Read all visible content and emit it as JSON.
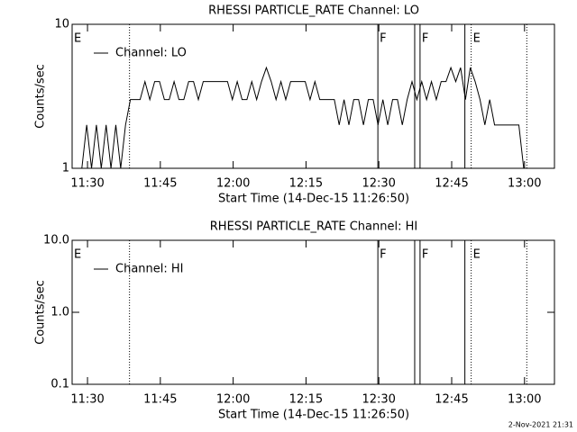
{
  "chart_data": [
    {
      "type": "line",
      "title": "RHESSI PARTICLE_RATE Channel: LO",
      "xlabel": "Start Time (14-Dec-15 11:26:50)",
      "ylabel": "Counts/sec",
      "ylog": true,
      "ylim": [
        1,
        10
      ],
      "yticks": [
        1,
        10
      ],
      "xlim": [
        0,
        5960
      ],
      "xticks": [
        {
          "value": 190,
          "label": "11:30"
        },
        {
          "value": 1090,
          "label": "11:45"
        },
        {
          "value": 1990,
          "label": "12:00"
        },
        {
          "value": 2890,
          "label": "12:15"
        },
        {
          "value": 3790,
          "label": "12:30"
        },
        {
          "value": 4690,
          "label": "12:45"
        },
        {
          "value": 5590,
          "label": "13:00"
        }
      ],
      "legend": "upper left",
      "series": [
        {
          "name": "Channel: LO",
          "color": "#000000",
          "x": [
            120,
            180,
            240,
            300,
            360,
            420,
            480,
            540,
            600,
            660,
            720,
            780,
            840,
            900,
            960,
            1020,
            1080,
            1140,
            1200,
            1260,
            1320,
            1380,
            1440,
            1500,
            1560,
            1620,
            1680,
            1740,
            1800,
            1860,
            1920,
            1980,
            2040,
            2100,
            2160,
            2220,
            2280,
            2340,
            2400,
            2460,
            2520,
            2580,
            2640,
            2700,
            2760,
            2820,
            2880,
            2940,
            3000,
            3060,
            3120,
            3180,
            3240,
            3300,
            3360,
            3420,
            3480,
            3540,
            3600,
            3660,
            3720,
            3780,
            3840,
            3900,
            3960,
            4020,
            4080,
            4140,
            4200,
            4260,
            4320,
            4380,
            4440,
            4500,
            4560,
            4620,
            4680,
            4740,
            4800,
            4860,
            4920,
            4980,
            5040,
            5100,
            5160,
            5220,
            5280,
            5340,
            5400,
            5460,
            5520,
            5580
          ],
          "values": [
            1,
            2,
            1,
            2,
            1,
            2,
            1,
            2,
            1,
            2,
            3,
            3,
            3,
            4,
            3,
            4,
            4,
            3,
            3,
            4,
            3,
            3,
            4,
            4,
            3,
            4,
            4,
            4,
            4,
            4,
            4,
            3,
            4,
            3,
            3,
            4,
            3,
            4,
            5,
            4,
            3,
            4,
            3,
            4,
            4,
            4,
            4,
            3,
            4,
            3,
            3,
            3,
            3,
            2,
            3,
            2,
            3,
            3,
            2,
            3,
            3,
            2,
            3,
            2,
            3,
            3,
            2,
            3,
            4,
            3,
            4,
            3,
            4,
            3,
            4,
            4,
            5,
            4,
            5,
            3,
            5,
            4,
            3,
            2,
            3,
            2,
            2,
            2,
            2,
            2,
            2,
            1
          ]
        }
      ],
      "vlines": [
        {
          "x": 709,
          "style": "dotted"
        },
        {
          "x": 3778,
          "style": "solid"
        },
        {
          "x": 4233,
          "style": "solid"
        },
        {
          "x": 4299,
          "style": "solid"
        },
        {
          "x": 4853,
          "style": "solid"
        },
        {
          "x": 4931,
          "style": "dotted"
        },
        {
          "x": 5618,
          "style": "dotted"
        }
      ],
      "annotations": [
        {
          "text": "E",
          "x": 0
        },
        {
          "text": "F",
          "x": 3778
        },
        {
          "text": "F",
          "x": 4299
        },
        {
          "text": "E",
          "x": 4931
        }
      ]
    },
    {
      "type": "line",
      "title": "RHESSI PARTICLE_RATE Channel: HI",
      "xlabel": "Start Time (14-Dec-15 11:26:50)",
      "ylabel": "Counts/sec",
      "ylog": true,
      "ylim": [
        0.1,
        10
      ],
      "yticks": [
        0.1,
        {
          "value": 1,
          "label": "1.0"
        },
        {
          "value": 10,
          "label": "10.0"
        }
      ],
      "xlim": [
        0,
        5960
      ],
      "xticks": [
        {
          "value": 190,
          "label": "11:30"
        },
        {
          "value": 1090,
          "label": "11:45"
        },
        {
          "value": 1990,
          "label": "12:00"
        },
        {
          "value": 2890,
          "label": "12:15"
        },
        {
          "value": 3790,
          "label": "12:30"
        },
        {
          "value": 4690,
          "label": "12:45"
        },
        {
          "value": 5590,
          "label": "13:00"
        }
      ],
      "legend": "upper left",
      "series": [
        {
          "name": "Channel: HI",
          "color": "#000000",
          "x": [],
          "values": []
        }
      ],
      "vlines": [
        {
          "x": 709,
          "style": "dotted"
        },
        {
          "x": 3778,
          "style": "solid"
        },
        {
          "x": 4233,
          "style": "solid"
        },
        {
          "x": 4299,
          "style": "solid"
        },
        {
          "x": 4853,
          "style": "solid"
        },
        {
          "x": 4931,
          "style": "dotted"
        },
        {
          "x": 5618,
          "style": "dotted"
        }
      ],
      "annotations": [
        {
          "text": "E",
          "x": 0
        },
        {
          "text": "F",
          "x": 3778
        },
        {
          "text": "F",
          "x": 4299
        },
        {
          "text": "E",
          "x": 4931
        }
      ]
    }
  ],
  "footer": "2-Nov-2021 21:31"
}
